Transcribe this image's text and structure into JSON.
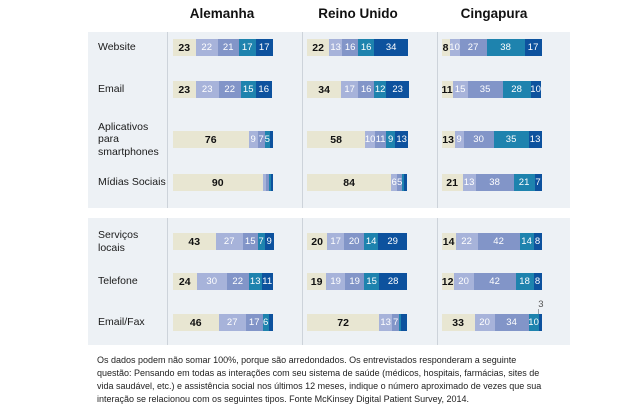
{
  "footnote": "Os dados podem não somar 100%, porque são arredondados. Os entrevistados responderam a seguinte questão: Pensando em todas as interações com seu sistema de saúde (médicos, hospitais, farmácias, sites de vida saudável, etc.) e assistência social nos últimos 12 meses, indique o número aproximado de vezes que sua interação se relacionou com os seguintes tipos. Fonte McKinsey Digital Patient Survey, 2014.",
  "chart_data": {
    "type": "bar",
    "variant": "horizontal-stacked",
    "unit": "%",
    "countries": [
      "Alemanha",
      "Reino Unido",
      "Cingapura"
    ],
    "categories": [
      "Website",
      "Email",
      "Aplicativos para smartphones",
      "Mídias Sociais",
      "Serviços locais",
      "Telefone",
      "Email/Fax"
    ],
    "segment_palette": [
      "#e8e6d2",
      "#a7b3da",
      "#8295c8",
      "#1e83ae",
      "#0d529e"
    ],
    "panel_background": "#edf1f5",
    "xlim": [
      0,
      100
    ],
    "sections": [
      {
        "rows": [
          {
            "label": "Website",
            "bars": [
              [
                {
                  "v": 23,
                  "t": "23"
                },
                {
                  "v": 22,
                  "t": "22"
                },
                {
                  "v": 21,
                  "t": "21"
                },
                {
                  "v": 17,
                  "t": "17"
                },
                {
                  "v": 17,
                  "t": "17"
                }
              ],
              [
                {
                  "v": 22,
                  "t": "22"
                },
                {
                  "v": 13,
                  "t": "13"
                },
                {
                  "v": 16,
                  "t": "16"
                },
                {
                  "v": 16,
                  "t": "16"
                },
                {
                  "v": 34,
                  "t": "34"
                }
              ],
              [
                {
                  "v": 8,
                  "t": "8"
                },
                {
                  "v": 10,
                  "t": "10"
                },
                {
                  "v": 27,
                  "t": "27"
                },
                {
                  "v": 38,
                  "t": "38"
                },
                {
                  "v": 17,
                  "t": "17"
                }
              ]
            ]
          },
          {
            "label": "Email",
            "bars": [
              [
                {
                  "v": 23,
                  "t": "23"
                },
                {
                  "v": 23,
                  "t": "23"
                },
                {
                  "v": 22,
                  "t": "22"
                },
                {
                  "v": 15,
                  "t": "15"
                },
                {
                  "v": 16,
                  "t": "16"
                }
              ],
              [
                {
                  "v": 34,
                  "t": "34"
                },
                {
                  "v": 17,
                  "t": "17"
                },
                {
                  "v": 16,
                  "t": "16"
                },
                {
                  "v": 12,
                  "t": "12"
                },
                {
                  "v": 23,
                  "t": "23"
                }
              ],
              [
                {
                  "v": 11,
                  "t": "11"
                },
                {
                  "v": 15,
                  "t": "15"
                },
                {
                  "v": 35,
                  "t": "35"
                },
                {
                  "v": 28,
                  "t": "28"
                },
                {
                  "v": 10,
                  "t": "10"
                }
              ]
            ]
          },
          {
            "label": "Aplicativos para smartphones",
            "bars": [
              [
                {
                  "v": 76,
                  "t": "76"
                },
                {
                  "v": 9,
                  "t": "9"
                },
                {
                  "v": 7,
                  "t": "7"
                },
                {
                  "v": 5,
                  "t": "5"
                },
                {
                  "v": 3,
                  "t": ""
                }
              ],
              [
                {
                  "v": 58,
                  "t": "58"
                },
                {
                  "v": 10,
                  "t": "10"
                },
                {
                  "v": 11,
                  "t": "11"
                },
                {
                  "v": 9,
                  "t": "9"
                },
                {
                  "v": 13,
                  "t": "13"
                }
              ],
              [
                {
                  "v": 13,
                  "t": "13"
                },
                {
                  "v": 9,
                  "t": "9"
                },
                {
                  "v": 30,
                  "t": "30"
                },
                {
                  "v": 35,
                  "t": "35"
                },
                {
                  "v": 13,
                  "t": "13"
                }
              ]
            ]
          },
          {
            "label": "Mídias Sociais",
            "bars": [
              [
                {
                  "v": 90,
                  "t": "90"
                },
                {
                  "v": 3,
                  "t": ""
                },
                {
                  "v": 3,
                  "t": ""
                },
                {
                  "v": 2,
                  "t": ""
                },
                {
                  "v": 2,
                  "t": ""
                }
              ],
              [
                {
                  "v": 84,
                  "t": "84"
                },
                {
                  "v": 6,
                  "t": "6"
                },
                {
                  "v": 5,
                  "t": "5"
                },
                {
                  "v": 2,
                  "t": ""
                },
                {
                  "v": 3,
                  "t": ""
                }
              ],
              [
                {
                  "v": 21,
                  "t": "21"
                },
                {
                  "v": 13,
                  "t": "13"
                },
                {
                  "v": 38,
                  "t": "38"
                },
                {
                  "v": 21,
                  "t": "21"
                },
                {
                  "v": 7,
                  "t": "7"
                }
              ]
            ]
          }
        ]
      },
      {
        "rows": [
          {
            "label": "Serviços locais",
            "bars": [
              [
                {
                  "v": 43,
                  "t": "43"
                },
                {
                  "v": 27,
                  "t": "27"
                },
                {
                  "v": 15,
                  "t": "15"
                },
                {
                  "v": 7,
                  "t": "7"
                },
                {
                  "v": 9,
                  "t": "9"
                }
              ],
              [
                {
                  "v": 20,
                  "t": "20"
                },
                {
                  "v": 17,
                  "t": "17"
                },
                {
                  "v": 20,
                  "t": "20"
                },
                {
                  "v": 14,
                  "t": "14"
                },
                {
                  "v": 29,
                  "t": "29"
                }
              ],
              [
                {
                  "v": 14,
                  "t": "14"
                },
                {
                  "v": 22,
                  "t": "22"
                },
                {
                  "v": 42,
                  "t": "42"
                },
                {
                  "v": 14,
                  "t": "14"
                },
                {
                  "v": 8,
                  "t": "8"
                }
              ]
            ]
          },
          {
            "label": "Telefone",
            "bars": [
              [
                {
                  "v": 24,
                  "t": "24"
                },
                {
                  "v": 30,
                  "t": "30"
                },
                {
                  "v": 22,
                  "t": "22"
                },
                {
                  "v": 13,
                  "t": "13"
                },
                {
                  "v": 11,
                  "t": "11"
                }
              ],
              [
                {
                  "v": 19,
                  "t": "19"
                },
                {
                  "v": 19,
                  "t": "19"
                },
                {
                  "v": 19,
                  "t": "19"
                },
                {
                  "v": 15,
                  "t": "15"
                },
                {
                  "v": 28,
                  "t": "28"
                }
              ],
              [
                {
                  "v": 12,
                  "t": "12"
                },
                {
                  "v": 20,
                  "t": "20"
                },
                {
                  "v": 42,
                  "t": "42"
                },
                {
                  "v": 18,
                  "t": "18"
                },
                {
                  "v": 8,
                  "t": "8"
                }
              ]
            ]
          },
          {
            "label": "Email/Fax",
            "bars": [
              [
                {
                  "v": 46,
                  "t": "46"
                },
                {
                  "v": 27,
                  "t": "27"
                },
                {
                  "v": 17,
                  "t": "17"
                },
                {
                  "v": 6,
                  "t": "6"
                },
                {
                  "v": 4,
                  "t": ""
                }
              ],
              [
                {
                  "v": 72,
                  "t": "72"
                },
                {
                  "v": 13,
                  "t": "13"
                },
                {
                  "v": 7,
                  "t": "7"
                },
                {
                  "v": 2,
                  "t": ""
                },
                {
                  "v": 6,
                  "t": ""
                }
              ],
              [
                {
                  "v": 33,
                  "t": "33"
                },
                {
                  "v": 20,
                  "t": "20"
                },
                {
                  "v": 34,
                  "t": "34"
                },
                {
                  "v": 10,
                  "t": "10"
                },
                {
                  "v": 3,
                  "t": "",
                  "callout": "3"
                }
              ]
            ]
          }
        ]
      }
    ]
  }
}
